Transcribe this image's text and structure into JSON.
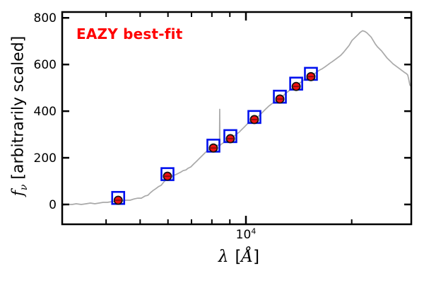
{
  "figure": {
    "annotation": {
      "text": "EAZY best-fit",
      "color": "#ff0000"
    },
    "xlabel": {
      "symbol": "λ",
      "open_bracket": "[",
      "unit": "Å",
      "close_bracket": "]"
    },
    "ylabel": {
      "symbol": "f",
      "subscript": "ν",
      "rest": "[arbitrarily scaled]"
    },
    "xtick_label": {
      "base": "10",
      "exponent": "4"
    }
  },
  "chart_data": {
    "type": "line",
    "title": "",
    "xlabel": "λ [Å]",
    "ylabel": "f_ν [arbitrarily scaled]",
    "annotation": "EAZY best-fit",
    "x_scale": "log",
    "y_scale": "linear",
    "xlim": [
      3000,
      29550
    ],
    "ylim": [
      -85,
      825
    ],
    "x_major_ticks": [
      10000
    ],
    "x_minor_ticks": [
      4000,
      5000,
      6000,
      7000,
      8000,
      9000,
      20000
    ],
    "y_major_ticks": [
      0,
      200,
      400,
      600,
      800
    ],
    "y_tick_labels": [
      "0",
      "200",
      "400",
      "600",
      "800"
    ],
    "grid": false,
    "legend": false,
    "colors": {
      "spectrum": "#a9a9a9",
      "observed_fill": "#ee1111",
      "observed_edge": "#111111",
      "errorbar": "#7a0c0c",
      "template_marker": "#0011ee",
      "axis": "#000000",
      "annotation": "#ff0000"
    },
    "series": [
      {
        "name": "eazy-template-spectrum",
        "type": "line",
        "color": "#a9a9a9",
        "points": [
          [
            3000,
            -3
          ],
          [
            3100,
            0
          ],
          [
            3200,
            0
          ],
          [
            3290,
            3
          ],
          [
            3400,
            0
          ],
          [
            3510,
            3
          ],
          [
            3610,
            6
          ],
          [
            3715,
            3
          ],
          [
            3820,
            6
          ],
          [
            3925,
            9
          ],
          [
            4035,
            9
          ],
          [
            4150,
            12
          ],
          [
            4250,
            12
          ],
          [
            4330,
            15
          ],
          [
            4430,
            15
          ],
          [
            4550,
            18
          ],
          [
            4680,
            18
          ],
          [
            4815,
            24
          ],
          [
            4925,
            27
          ],
          [
            5040,
            27
          ],
          [
            5160,
            36
          ],
          [
            5255,
            39
          ],
          [
            5355,
            51
          ],
          [
            5455,
            61
          ],
          [
            5530,
            67
          ],
          [
            5635,
            76
          ],
          [
            5740,
            82
          ],
          [
            5845,
            97
          ],
          [
            5985,
            112
          ],
          [
            6095,
            118
          ],
          [
            6210,
            124
          ],
          [
            6295,
            127
          ],
          [
            6415,
            133
          ],
          [
            6530,
            139
          ],
          [
            6625,
            145
          ],
          [
            6750,
            148
          ],
          [
            6840,
            155
          ],
          [
            6970,
            161
          ],
          [
            7100,
            173
          ],
          [
            7235,
            185
          ],
          [
            7370,
            197
          ],
          [
            7505,
            209
          ],
          [
            7645,
            221
          ],
          [
            7790,
            233
          ],
          [
            7935,
            239
          ],
          [
            8080,
            245
          ],
          [
            8230,
            252
          ],
          [
            8350,
            255
          ],
          [
            8410,
            256
          ],
          [
            8420,
            408
          ],
          [
            8432,
            252
          ],
          [
            8500,
            258
          ],
          [
            8620,
            264
          ],
          [
            8785,
            273
          ],
          [
            9030,
            282
          ],
          [
            9200,
            291
          ],
          [
            9375,
            300
          ],
          [
            9550,
            309
          ],
          [
            9725,
            321
          ],
          [
            9910,
            333
          ],
          [
            10090,
            345
          ],
          [
            10280,
            355
          ],
          [
            10425,
            358
          ],
          [
            10570,
            364
          ],
          [
            10770,
            373
          ],
          [
            10970,
            385
          ],
          [
            11175,
            397
          ],
          [
            11385,
            409
          ],
          [
            11600,
            421
          ],
          [
            11815,
            430
          ],
          [
            12035,
            439
          ],
          [
            12260,
            448
          ],
          [
            12490,
            455
          ],
          [
            12725,
            464
          ],
          [
            12960,
            476
          ],
          [
            13205,
            485
          ],
          [
            13450,
            494
          ],
          [
            13705,
            503
          ],
          [
            13900,
            509
          ],
          [
            14155,
            518
          ],
          [
            14420,
            527
          ],
          [
            14690,
            536
          ],
          [
            14965,
            542
          ],
          [
            15315,
            548
          ],
          [
            15600,
            558
          ],
          [
            15895,
            567
          ],
          [
            16190,
            576
          ],
          [
            16495,
            582
          ],
          [
            16725,
            588
          ],
          [
            17040,
            597
          ],
          [
            17355,
            606
          ],
          [
            17600,
            612
          ],
          [
            17930,
            621
          ],
          [
            18265,
            630
          ],
          [
            18605,
            639
          ],
          [
            18955,
            652
          ],
          [
            19310,
            667
          ],
          [
            19670,
            682
          ],
          [
            20040,
            703
          ],
          [
            20415,
            715
          ],
          [
            20800,
            727
          ],
          [
            21185,
            739
          ],
          [
            21480,
            745
          ],
          [
            21780,
            742
          ],
          [
            22085,
            736
          ],
          [
            22395,
            727
          ],
          [
            22705,
            718
          ],
          [
            23025,
            703
          ],
          [
            23345,
            688
          ],
          [
            23670,
            676
          ],
          [
            24000,
            667
          ],
          [
            24335,
            658
          ],
          [
            24790,
            642
          ],
          [
            25250,
            627
          ],
          [
            25725,
            615
          ],
          [
            26205,
            603
          ],
          [
            26695,
            594
          ],
          [
            27190,
            585
          ],
          [
            27700,
            576
          ],
          [
            28215,
            567
          ],
          [
            28610,
            561
          ],
          [
            28870,
            555
          ],
          [
            29005,
            542
          ],
          [
            29140,
            527
          ],
          [
            29275,
            512
          ],
          [
            29545,
            506
          ]
        ]
      },
      {
        "name": "template-photometry",
        "type": "scatter",
        "marker": "open-square",
        "color": "#0011ee",
        "x": [
          4330,
          5980,
          8080,
          9030,
          10570,
          12490,
          13900,
          15310
        ],
        "y": [
          28,
          130,
          252,
          293,
          375,
          462,
          518,
          560
        ]
      },
      {
        "name": "observed-photometry",
        "type": "scatter",
        "marker": "filled-circle",
        "color": "#ee1111",
        "x": [
          4330,
          5980,
          8080,
          9030,
          10570,
          12490,
          13900,
          15310
        ],
        "y": [
          18,
          121,
          242,
          282,
          364,
          452,
          506,
          548
        ]
      }
    ]
  }
}
